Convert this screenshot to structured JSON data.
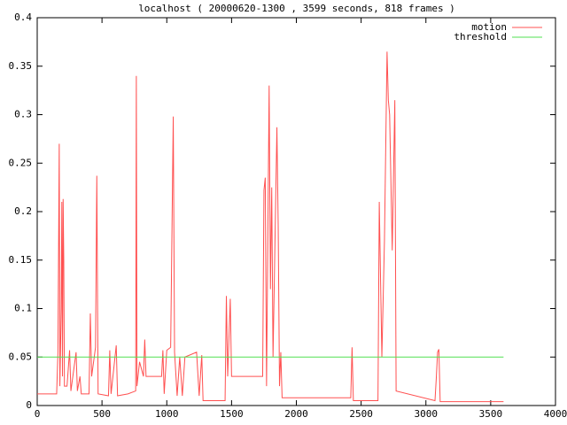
{
  "chart_data": {
    "type": "line",
    "title": "localhost ( 20000620-1300 , 3599 seconds, 818 frames )",
    "xlim": [
      0,
      4000
    ],
    "xticks": [
      0,
      500,
      1000,
      1500,
      2000,
      2500,
      3000,
      3500,
      4000
    ],
    "ylim": [
      0,
      0.4
    ],
    "yticks": [
      0,
      0.05,
      0.1,
      0.15,
      0.2,
      0.25,
      0.3,
      0.35,
      0.4
    ],
    "legend": "top-right",
    "series": [
      {
        "name": "motion",
        "color": "#ff5050",
        "x": [
          0,
          150,
          160,
          170,
          175,
          185,
          190,
          195,
          200,
          205,
          210,
          230,
          250,
          260,
          300,
          310,
          330,
          340,
          400,
          410,
          420,
          450,
          460,
          470,
          550,
          560,
          570,
          610,
          620,
          700,
          760,
          765,
          770,
          790,
          820,
          830,
          840,
          960,
          970,
          980,
          1000,
          1030,
          1050,
          1060,
          1080,
          1100,
          1120,
          1140,
          1230,
          1250,
          1270,
          1280,
          1450,
          1460,
          1470,
          1490,
          1500,
          1740,
          1750,
          1760,
          1770,
          1790,
          1800,
          1810,
          1820,
          1850,
          1860,
          1870,
          1880,
          1890,
          2420,
          2430,
          2440,
          2630,
          2640,
          2660,
          2680,
          2700,
          2710,
          2720,
          2740,
          2760,
          2770,
          3070,
          3080,
          3090,
          3100,
          3110,
          3599
        ],
        "values": [
          0.012,
          0.012,
          0.055,
          0.27,
          0.02,
          0.1,
          0.21,
          0.03,
          0.213,
          0.15,
          0.02,
          0.02,
          0.057,
          0.015,
          0.055,
          0.015,
          0.03,
          0.012,
          0.012,
          0.095,
          0.03,
          0.06,
          0.237,
          0.012,
          0.01,
          0.057,
          0.012,
          0.062,
          0.01,
          0.012,
          0.015,
          0.34,
          0.02,
          0.045,
          0.03,
          0.068,
          0.03,
          0.03,
          0.057,
          0.012,
          0.057,
          0.06,
          0.298,
          0.055,
          0.01,
          0.05,
          0.01,
          0.05,
          0.055,
          0.01,
          0.052,
          0.005,
          0.005,
          0.113,
          0.03,
          0.11,
          0.03,
          0.03,
          0.222,
          0.235,
          0.02,
          0.33,
          0.12,
          0.225,
          0.05,
          0.287,
          0.185,
          0.02,
          0.055,
          0.008,
          0.008,
          0.06,
          0.005,
          0.005,
          0.21,
          0.05,
          0.17,
          0.365,
          0.315,
          0.3,
          0.16,
          0.315,
          0.015,
          0.005,
          0.028,
          0.055,
          0.058,
          0.004,
          0.004
        ]
      },
      {
        "name": "threshold",
        "color": "#50e050",
        "x": [
          0,
          3599
        ],
        "values": [
          0.05,
          0.05
        ]
      }
    ]
  }
}
